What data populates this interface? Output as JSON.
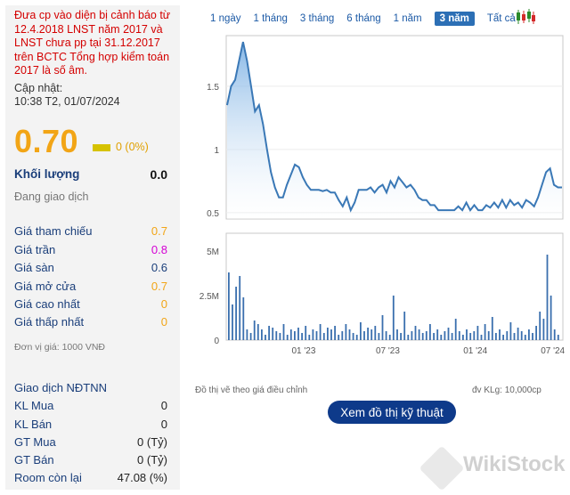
{
  "stock": {
    "warning": "Đưa cp vào diện bị cảnh báo từ 12.4.2018 LNST năm 2017 và LNST chưa pp tại 31.12.2017 trên BCTC Tổng hợp kiểm toán 2017 là số âm.",
    "update_label": "Cập nhật:",
    "update_time": "10:38 T2, 01/07/2024",
    "price": "0.70",
    "change": "0 (0%)",
    "volume_label": "Khối lượng",
    "volume_value": "0.0",
    "status": "Đang giao dịch",
    "prices": [
      {
        "label": "Giá tham chiếu",
        "value": "0.7"
      },
      {
        "label": "Giá trần",
        "value": "0.8"
      },
      {
        "label": "Giá sàn",
        "value": "0.6"
      },
      {
        "label": "Giá mở cửa",
        "value": "0.7"
      },
      {
        "label": "Giá cao nhất",
        "value": "0"
      },
      {
        "label": "Giá thấp nhất",
        "value": "0"
      }
    ],
    "unit_note": "Đơn vị giá: 1000 VNĐ",
    "foreign_title": "Giao dịch NĐTNN",
    "foreign": [
      {
        "label": "KL Mua",
        "value": "0"
      },
      {
        "label": "KL Bán",
        "value": "0"
      },
      {
        "label": "GT Mua",
        "value": "0 (Tỷ)"
      },
      {
        "label": "GT Bán",
        "value": "0 (Tỷ)"
      },
      {
        "label": "Room còn lại",
        "value": "47.08 (%)"
      }
    ]
  },
  "colors": {
    "price": "#f2a516",
    "ceiling": "#d400d4",
    "floor": "#1a3e7a",
    "warning": "#d40000",
    "line": "#3a78b6",
    "button": "#0e3a8a"
  },
  "tabs": [
    "1 ngày",
    "1 tháng",
    "3 tháng",
    "6 tháng",
    "1 năm",
    "3 năm",
    "Tất cả"
  ],
  "active_tab": "3 năm",
  "chart_note_left": "Đồ thị vẽ theo giá điều chỉnh",
  "chart_note_right": "đv KLg: 10,000cp",
  "tech_button": "Xem đồ thị kỹ thuật",
  "watermark": "WikiStock",
  "chart_data": [
    {
      "type": "area",
      "yticks": [
        "1.5",
        "1",
        "0.5"
      ],
      "ytick_values": [
        1.5,
        1,
        0.5
      ],
      "ylim": [
        0.45,
        1.9
      ],
      "xticks": [
        "01 '23",
        "07 '23",
        "01 '24",
        "07 '24"
      ],
      "series": [
        {
          "values": [
            1.35,
            1.5,
            1.55,
            1.7,
            1.85,
            1.7,
            1.5,
            1.3,
            1.35,
            1.2,
            1.0,
            0.82,
            0.7,
            0.62,
            0.62,
            0.72,
            0.8,
            0.88,
            0.86,
            0.78,
            0.72,
            0.68,
            0.68,
            0.68,
            0.67,
            0.68,
            0.66,
            0.66,
            0.6,
            0.55,
            0.62,
            0.52,
            0.58,
            0.68,
            0.68,
            0.68,
            0.7,
            0.66,
            0.7,
            0.72,
            0.66,
            0.75,
            0.7,
            0.78,
            0.74,
            0.7,
            0.72,
            0.68,
            0.62,
            0.6,
            0.6,
            0.56,
            0.56,
            0.52,
            0.52,
            0.52,
            0.52,
            0.52,
            0.55,
            0.52,
            0.58,
            0.52,
            0.56,
            0.52,
            0.52,
            0.56,
            0.54,
            0.58,
            0.54,
            0.6,
            0.54,
            0.6,
            0.56,
            0.58,
            0.54,
            0.6,
            0.58,
            0.55,
            0.62,
            0.72,
            0.82,
            0.85,
            0.72,
            0.7,
            0.7
          ]
        }
      ]
    },
    {
      "type": "bar",
      "yticks": [
        "5M",
        "2.5M",
        "0"
      ],
      "ytick_values": [
        5000000,
        2500000,
        0
      ],
      "ylim": [
        0,
        6000000
      ],
      "values": [
        3.8,
        2.0,
        3.0,
        3.6,
        2.4,
        0.6,
        0.4,
        1.1,
        0.9,
        0.6,
        0.3,
        0.8,
        0.7,
        0.5,
        0.4,
        0.9,
        0.3,
        0.6,
        0.5,
        0.7,
        0.4,
        0.8,
        0.3,
        0.6,
        0.5,
        0.9,
        0.4,
        0.7,
        0.6,
        0.8,
        0.3,
        0.5,
        0.9,
        0.6,
        0.4,
        0.3,
        1.0,
        0.5,
        0.7,
        0.6,
        0.8,
        0.4,
        1.4,
        0.5,
        0.3,
        2.5,
        0.6,
        0.4,
        1.6,
        0.3,
        0.5,
        0.8,
        0.6,
        0.4,
        0.5,
        0.9,
        0.4,
        0.6,
        0.3,
        0.5,
        0.7,
        0.4,
        1.2,
        0.5,
        0.3,
        0.6,
        0.4,
        0.5,
        0.8,
        0.3,
        0.9,
        0.5,
        1.3,
        0.4,
        0.6,
        0.3,
        0.5,
        1.0,
        0.4,
        0.7,
        0.5,
        0.3,
        0.6,
        0.4,
        0.8,
        1.6,
        1.2,
        4.8,
        2.5,
        0.6,
        0.3
      ]
    }
  ]
}
